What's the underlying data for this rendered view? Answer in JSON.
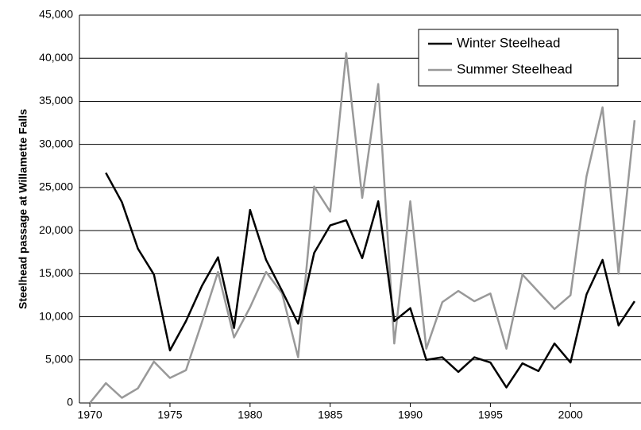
{
  "chart_data": {
    "type": "line",
    "y_label": "Steelhead passage at Willamette Falls",
    "x": [
      1970,
      1971,
      1972,
      1973,
      1974,
      1975,
      1976,
      1977,
      1978,
      1979,
      1980,
      1981,
      1982,
      1983,
      1984,
      1985,
      1986,
      1987,
      1988,
      1989,
      1990,
      1991,
      1992,
      1993,
      1994,
      1995,
      1996,
      1997,
      1998,
      1999,
      2000,
      2001,
      2002,
      2003,
      2004
    ],
    "series": [
      {
        "name": "Winter Steelhead",
        "color": "#000000",
        "values": [
          null,
          26700,
          23300,
          17900,
          14900,
          6100,
          9500,
          13600,
          16900,
          8700,
          22400,
          16600,
          13000,
          9200,
          17400,
          20600,
          21200,
          16800,
          23400,
          9500,
          11000,
          5000,
          5300,
          3600,
          5300,
          4700,
          1800,
          4600,
          3700,
          6900,
          4700,
          12600,
          16600,
          9000,
          11800
        ]
      },
      {
        "name": "Summer Steelhead",
        "color": "#999999",
        "values": [
          0,
          2300,
          600,
          1700,
          4800,
          2900,
          3800,
          9400,
          15200,
          7600,
          11100,
          15200,
          12700,
          5300,
          25100,
          22200,
          40600,
          23800,
          37000,
          6900,
          23400,
          6300,
          11700,
          13000,
          11800,
          12700,
          6300,
          14900,
          12900,
          10900,
          12500,
          26300,
          34300,
          15000,
          32800
        ]
      }
    ],
    "xlim": [
      1969.35,
      2004.4
    ],
    "xticks": [
      1970,
      1975,
      1980,
      1985,
      1990,
      1995,
      2000
    ],
    "ylim": [
      0,
      45000
    ],
    "yticks": [
      0,
      {
        "value": 5000,
        "label": "5,000"
      },
      {
        "value": 10000,
        "label": "10,000"
      },
      {
        "value": 15000,
        "label": "15,000"
      },
      {
        "value": 20000,
        "label": "20,000"
      },
      {
        "value": 25000,
        "label": "25,000"
      },
      {
        "value": 30000,
        "label": "30,000"
      },
      {
        "value": 35000,
        "label": "35,000"
      },
      {
        "value": 40000,
        "label": "40,000"
      },
      {
        "value": 45000,
        "label": "45,000"
      }
    ],
    "grid": true,
    "legend": "upper-right"
  }
}
